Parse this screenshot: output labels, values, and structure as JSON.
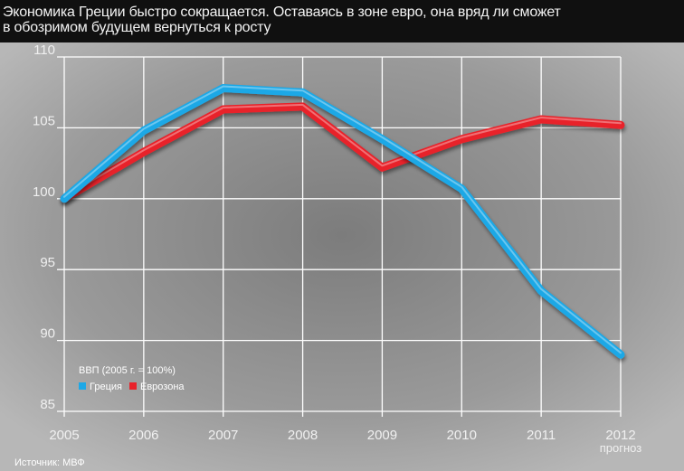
{
  "title_lines": [
    "Экономика Греции быстро сокращается. Оставаясь в зоне евро, она вряд ли сможет",
    "в обозримом будущем вернуться к росту"
  ],
  "source": "Источник: МВФ",
  "forecast_note": "прогноз",
  "colors": {
    "greece": "#1ea8e6",
    "eurozone": "#e8222a",
    "background": "#9a9a9a"
  },
  "chart_data": {
    "type": "line",
    "title": "Экономика Греции быстро сокращается. Оставаясь в зоне евро, она вряд ли сможет в обозримом будущем вернуться к росту",
    "ylabel": "ВВП (2005 г. = 100%)",
    "x": [
      "2005",
      "2006",
      "2007",
      "2008",
      "2009",
      "2010",
      "2011",
      "2012"
    ],
    "yticks": [
      "110",
      "105",
      "100",
      "95",
      "90",
      "85"
    ],
    "ylim": [
      85,
      110
    ],
    "grid": true,
    "legend_title": "ВВП (2005 г. = 100%)",
    "legend_position": "bottom-left",
    "series": [
      {
        "name": "Греция",
        "color": "#1ea8e6",
        "values": [
          100,
          104.8,
          107.8,
          107.5,
          104.2,
          100.7,
          93.5,
          89
        ]
      },
      {
        "name": "Еврозона",
        "color": "#e8222a",
        "values": [
          100,
          103.3,
          106.3,
          106.5,
          102.2,
          104.2,
          105.6,
          105.2
        ]
      }
    ]
  }
}
